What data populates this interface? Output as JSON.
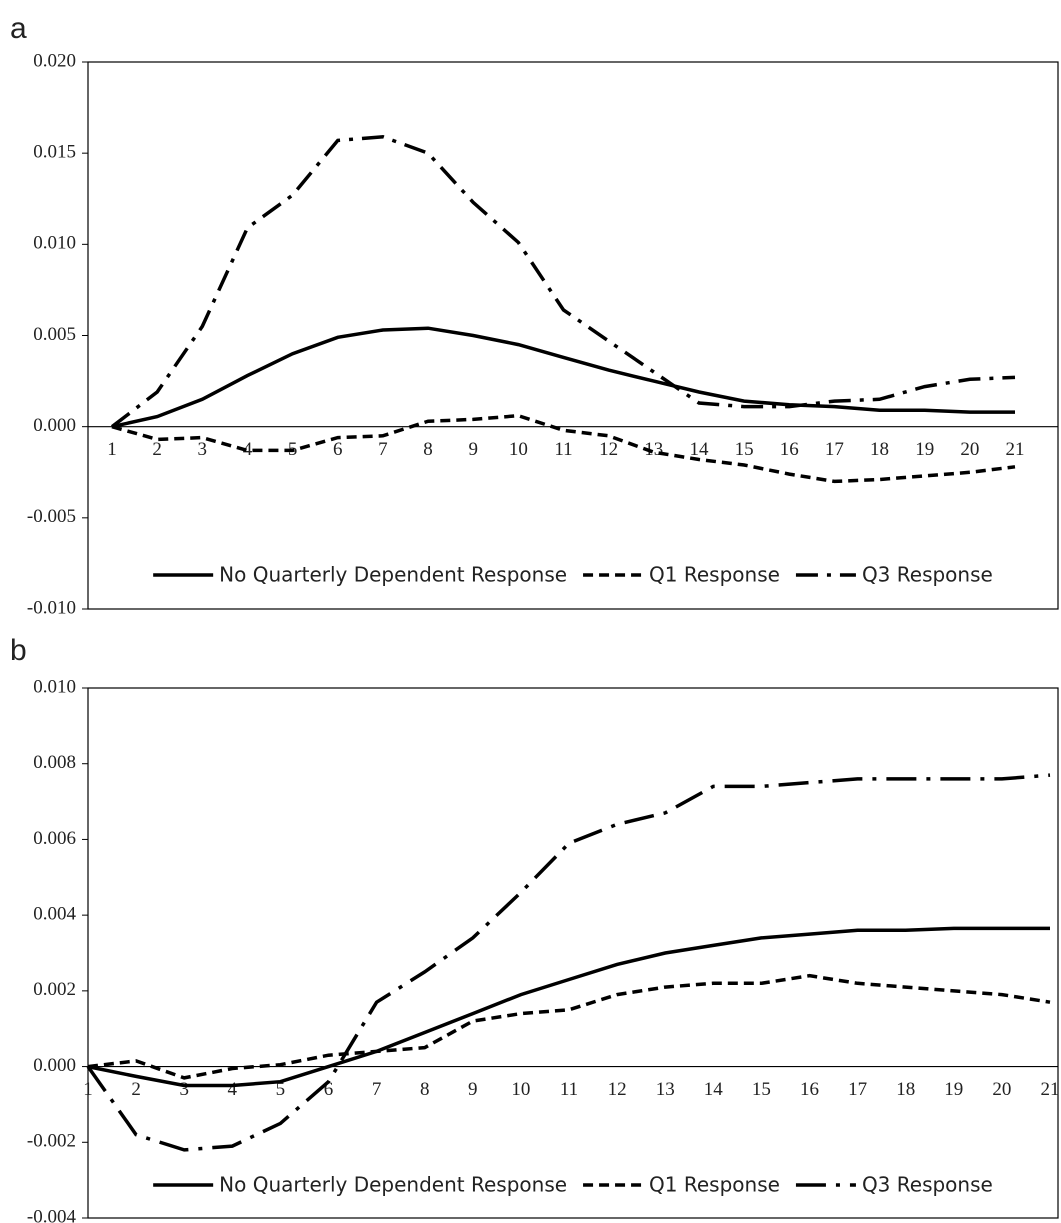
{
  "chart_data": [
    {
      "type": "line",
      "panel_label": "a",
      "categories": [
        "1",
        "2",
        "3",
        "4",
        "5",
        "6",
        "7",
        "8",
        "9",
        "10",
        "11",
        "12",
        "13",
        "14",
        "15",
        "16",
        "17",
        "18",
        "19",
        "20",
        "21"
      ],
      "series": [
        {
          "name": "No Quarterly Dependent Response",
          "color": "#000000",
          "line_style": "solid",
          "values": [
            0,
            0.00055,
            0.0015,
            0.0028,
            0.004,
            0.0049,
            0.0053,
            0.0054,
            0.005,
            0.0045,
            0.0038,
            0.0031,
            0.0025,
            0.0019,
            0.0014,
            0.0012,
            0.0011,
            0.0009,
            0.0009,
            0.0008,
            0.0008
          ]
        },
        {
          "name": "Q1 Response",
          "color": "#000000",
          "line_style": "dashed",
          "values": [
            0,
            -0.0007,
            -0.0006,
            -0.0013,
            -0.0013,
            -0.0006,
            -0.0005,
            0.0003,
            0.0004,
            0.0006,
            -0.0002,
            -0.0005,
            -0.0014,
            -0.0018,
            -0.0021,
            -0.0026,
            -0.003,
            -0.0029,
            -0.0027,
            -0.0025,
            -0.0022
          ]
        },
        {
          "name": "Q3 Response",
          "color": "#000000",
          "line_style": "dashdot",
          "values": [
            0,
            0.0019,
            0.0055,
            0.0109,
            0.0127,
            0.0157,
            0.0159,
            0.015,
            0.0123,
            0.0101,
            0.0064,
            0.0047,
            0.003,
            0.0013,
            0.0011,
            0.0011,
            0.0014,
            0.0015,
            0.0022,
            0.0026,
            0.0027
          ]
        }
      ],
      "ylim": [
        -0.01,
        0.02
      ],
      "yticks": [
        {
          "value": -0.01,
          "label": "-0.010"
        },
        {
          "value": -0.005,
          "label": "-0.005"
        },
        {
          "value": 0,
          "label": "0.000"
        },
        {
          "value": 0.005,
          "label": "0.005"
        },
        {
          "value": 0.01,
          "label": "0.010"
        },
        {
          "value": 0.015,
          "label": "0.015"
        },
        {
          "value": 0.02,
          "label": "0.020"
        }
      ],
      "legend_position": "bottom",
      "grid": false
    },
    {
      "type": "line",
      "panel_label": "b",
      "categories": [
        "1",
        "2",
        "3",
        "4",
        "5",
        "6",
        "7",
        "8",
        "9",
        "10",
        "11",
        "12",
        "13",
        "14",
        "15",
        "16",
        "17",
        "18",
        "19",
        "20",
        "21"
      ],
      "series": [
        {
          "name": "No Quarterly Dependent Response",
          "color": "#000000",
          "line_style": "solid",
          "values": [
            0,
            -0.00026,
            -0.0005,
            -0.0005,
            -0.0004,
            0,
            0.0004,
            0.0009,
            0.0014,
            0.0019,
            0.0023,
            0.0027,
            0.003,
            0.0032,
            0.0034,
            0.0035,
            0.0036,
            0.0036,
            0.00365,
            0.00365,
            0.00365
          ]
        },
        {
          "name": "Q1 Response",
          "color": "#000000",
          "line_style": "dashed",
          "values": [
            0,
            0.00015,
            -0.0003,
            -5e-05,
            5e-05,
            0.0003,
            0.0004,
            0.0005,
            0.0012,
            0.0014,
            0.0015,
            0.0019,
            0.0021,
            0.0022,
            0.0022,
            0.0024,
            0.0022,
            0.0021,
            0.002,
            0.0019,
            0.0017
          ]
        },
        {
          "name": "Q3 Response",
          "color": "#000000",
          "line_style": "longdashdot",
          "values": [
            0,
            -0.0018,
            -0.0022,
            -0.0021,
            -0.0015,
            -0.0004,
            0.0017,
            0.0025,
            0.0034,
            0.0046,
            0.0059,
            0.0064,
            0.0067,
            0.0074,
            0.0074,
            0.0075,
            0.0076,
            0.0076,
            0.0076,
            0.0076,
            0.0077
          ]
        }
      ],
      "ylim": [
        -0.004,
        0.01
      ],
      "yticks": [
        {
          "value": -0.004,
          "label": "-0.004"
        },
        {
          "value": -0.002,
          "label": "-0.002"
        },
        {
          "value": 0,
          "label": "0.000"
        },
        {
          "value": 0.002,
          "label": "0.002"
        },
        {
          "value": 0.004,
          "label": "0.004"
        },
        {
          "value": 0.006,
          "label": "0.006"
        },
        {
          "value": 0.008,
          "label": "0.008"
        },
        {
          "value": 0.01,
          "label": "0.010"
        }
      ],
      "legend_position": "bottom",
      "grid": false
    }
  ]
}
